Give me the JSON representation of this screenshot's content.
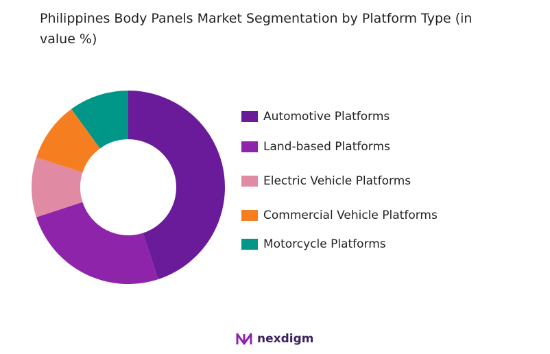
{
  "title": "Philippines Body Panels Market Segmentation by Platform Type (in value %)",
  "logo_text": "nexdigm",
  "chart_data": {
    "type": "pie",
    "donut": true,
    "title": "Philippines Body Panels Market Segmentation by Platform Type (in value %)",
    "legend_position": "right",
    "categories": [
      "Automotive Platforms",
      "Land-based Platforms",
      "Electric Vehicle Platforms",
      "Commercial Vehicle Platforms",
      "Motorcycle Platforms"
    ],
    "values": [
      45,
      25,
      10,
      10,
      10
    ],
    "colors": [
      "#6A1B9A",
      "#8E24AA",
      "#E08AA3",
      "#F57F20",
      "#009688"
    ]
  }
}
